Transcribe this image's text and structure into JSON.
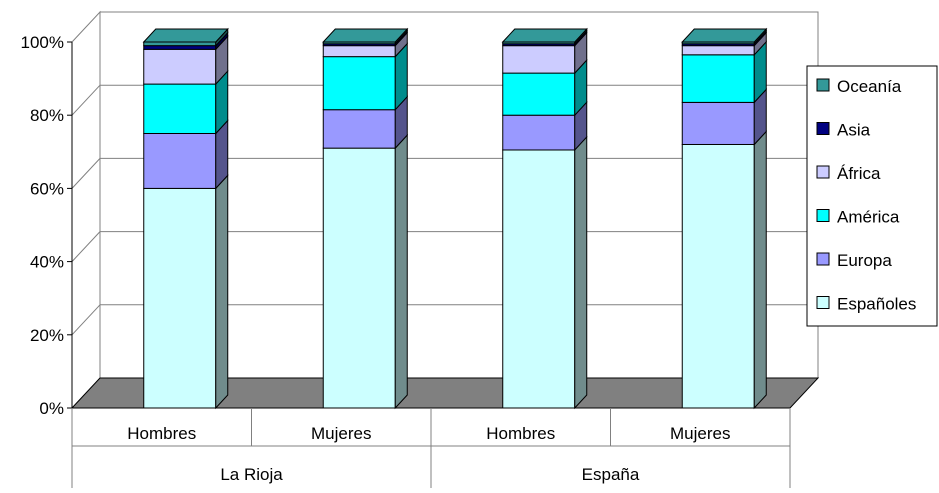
{
  "chart_data": {
    "type": "bar",
    "stacked": true,
    "percent_stacked": true,
    "three_d": true,
    "ylim": [
      0,
      100
    ],
    "y_ticks": [
      "0%",
      "20%",
      "40%",
      "60%",
      "80%",
      "100%"
    ],
    "grid": true,
    "legend_position": "right",
    "categories": [
      "Hombres",
      "Mujeres",
      "Hombres",
      "Mujeres"
    ],
    "groups": [
      {
        "label": "La Rioja",
        "span": 2
      },
      {
        "label": "España",
        "span": 2
      }
    ],
    "series": [
      {
        "name": "Españoles",
        "color": "#CCFFFF",
        "values": [
          60,
          71,
          70.5,
          72
        ]
      },
      {
        "name": "Europa",
        "color": "#9999FF",
        "values": [
          15,
          10.5,
          9.5,
          11.5
        ]
      },
      {
        "name": "América",
        "color": "#00FFFF",
        "values": [
          13.5,
          14.5,
          11.5,
          13
        ]
      },
      {
        "name": "África",
        "color": "#CCCCFF",
        "values": [
          9.5,
          3,
          7.5,
          2.5
        ]
      },
      {
        "name": "Asia",
        "color": "#000080",
        "values": [
          1,
          0.5,
          0.5,
          0.5
        ]
      },
      {
        "name": "Oceanía",
        "color": "#339999",
        "values": [
          1,
          0.5,
          0.5,
          0.5
        ]
      }
    ]
  }
}
